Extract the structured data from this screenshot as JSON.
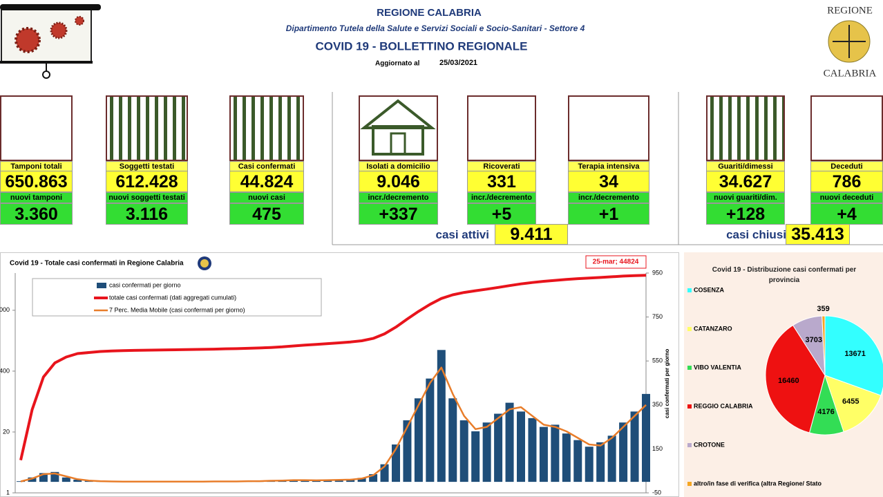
{
  "header": {
    "title": "REGIONE CALABRIA",
    "department": "Dipartimento Tutela della Salute e Servizi Sociali e Socio-Sanitari - Settore 4",
    "bulletin": "COVID 19 - BOLLETTINO REGIONALE",
    "updated_label": "Aggiornato al",
    "updated_date": "25/03/2021",
    "logo_top": "REGIONE",
    "logo_bottom": "CALABRIA"
  },
  "cards": [
    {
      "label": "Tamponi totali",
      "value": "650.863",
      "delta_label": "nuovi tamponi",
      "delta": "3.360"
    },
    {
      "label": "Soggetti testati",
      "value": "612.428",
      "delta_label": "nuovi soggetti testati",
      "delta": "3.116"
    },
    {
      "label": "Casi confermati",
      "value": "44.824",
      "delta_label": "nuovi casi",
      "delta": "475"
    },
    {
      "label": "Isolati a domicilio",
      "value": "9.046",
      "delta_label": "incr./decremento",
      "delta": "+337"
    },
    {
      "label": "Ricoverati",
      "value": "331",
      "delta_label": "incr./decremento",
      "delta": "+5"
    },
    {
      "label": "Terapia intensiva",
      "value": "34",
      "delta_label": "incr./decremento",
      "delta": "+1"
    },
    {
      "label": "Guariti/dimessi",
      "value": "34.627",
      "delta_label": "nuovi guariti/dim.",
      "delta": "+128"
    },
    {
      "label": "Deceduti",
      "value": "786",
      "delta_label": "nuovi deceduti",
      "delta": "+4"
    }
  ],
  "summary": [
    {
      "label": "casi attivi",
      "value": "9.411"
    },
    {
      "label": "casi chiusi",
      "value": "35.413"
    }
  ],
  "chart_data": [
    {
      "type": "combo",
      "title": "Covid 19 - Totale casi confermati in Regione Calabria",
      "annotation": "25-mar; 44824",
      "y2_label": "casi confermati per giorno",
      "categories": [
        null,
        null,
        null,
        null,
        null,
        null,
        null,
        null,
        null,
        null,
        null,
        null,
        null,
        null,
        null,
        null,
        null,
        null,
        null,
        null,
        null,
        null,
        null,
        null,
        null,
        null,
        null,
        null,
        null,
        null,
        null,
        null,
        null,
        null,
        null,
        null,
        null,
        null,
        null,
        null,
        null,
        null,
        null,
        null,
        null,
        null,
        null,
        null,
        null,
        null,
        null,
        null,
        null,
        null,
        null,
        null
      ],
      "log_scale": true,
      "ylim": [
        1,
        50000
      ],
      "yticks": [
        1,
        20,
        400,
        {
          "value": 8000,
          "label": "000"
        }
      ],
      "y2lim": [
        -50,
        950
      ],
      "y2ticks": [
        -50,
        150,
        350,
        550,
        750,
        950
      ],
      "series": [
        {
          "name": "casi confermati per giorno",
          "type": "bar",
          "color": "#1f4e79",
          "axis": "y2",
          "values": [
            3,
            20,
            40,
            45,
            20,
            10,
            5,
            3,
            2,
            1,
            1,
            1,
            1,
            1,
            1,
            1,
            2,
            2,
            2,
            3,
            3,
            4,
            6,
            7,
            9,
            7,
            6,
            9,
            10,
            12,
            18,
            35,
            80,
            170,
            280,
            380,
            470,
            600,
            380,
            280,
            230,
            270,
            310,
            360,
            320,
            290,
            250,
            260,
            220,
            190,
            160,
            180,
            210,
            270,
            320,
            400
          ]
        },
        {
          "name": "totale casi confermati (dati aggregati cumulati)",
          "type": "line",
          "color": "#e8141c",
          "values": [
            5,
            60,
            300,
            600,
            800,
            950,
            1000,
            1050,
            1080,
            1100,
            1110,
            1120,
            1130,
            1140,
            1150,
            1160,
            1170,
            1180,
            1200,
            1210,
            1230,
            1250,
            1280,
            1320,
            1380,
            1440,
            1490,
            1550,
            1610,
            1680,
            1780,
            2000,
            2500,
            3500,
            5200,
            7600,
            10700,
            14300,
            17100,
            19200,
            20900,
            22600,
            24600,
            26900,
            29300,
            31400,
            33200,
            34900,
            36500,
            37900,
            39100,
            40200,
            41600,
            43000,
            43900,
            44824
          ]
        },
        {
          "name": "7 Perc. Media Mobile (casi confermati per giorno)",
          "type": "line",
          "color": "#e87d2a",
          "axis": "y2",
          "values": [
            2,
            15,
            35,
            38,
            25,
            12,
            6,
            3,
            2,
            1,
            1,
            1,
            1,
            1,
            1,
            1,
            1,
            2,
            2,
            2,
            3,
            3,
            5,
            6,
            8,
            8,
            7,
            8,
            9,
            10,
            15,
            30,
            70,
            150,
            250,
            350,
            450,
            520,
            400,
            300,
            240,
            250,
            290,
            330,
            340,
            300,
            260,
            250,
            230,
            200,
            170,
            165,
            200,
            250,
            300,
            350
          ]
        }
      ]
    },
    {
      "type": "pie",
      "title": "Covid 19 - Distribuzione casi confermati per provincia",
      "categories": [
        "COSENZA",
        "CATANZARO",
        "VIBO VALENTIA",
        "REGGIO CALABRIA",
        "CROTONE",
        "altro/in fase di verifica (altra Regione/ Stato"
      ],
      "values": [
        13671,
        6455,
        4176,
        16460,
        3703,
        359
      ],
      "colors": [
        "#33ffff",
        "#ffff66",
        "#33dd55",
        "#ee1111",
        "#b9a9cc",
        "#f5a623"
      ]
    }
  ]
}
